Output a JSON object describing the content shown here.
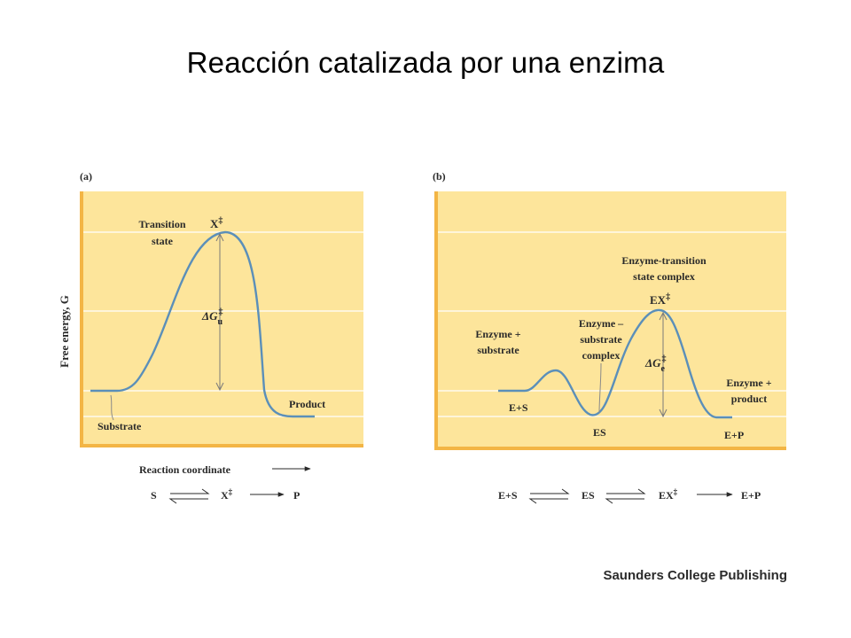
{
  "slide": {
    "title": "Reacción catalizada por una enzima",
    "credit": "Saunders College Publishing"
  },
  "colors": {
    "panel_fill": "#fde59b",
    "panel_border": "#f3b545",
    "curve": "#5b8fb9",
    "gridline": "#ffffff",
    "text": "#2a2a2a"
  },
  "panel_a": {
    "label": "(a)",
    "y_axis_label": "Free energy, G",
    "transition_state_line1": "Transition",
    "transition_state_line2": "state",
    "transition_symbol": "X",
    "delta_g": "ΔG",
    "delta_g_subscript": "u",
    "substrate_label": "Substrate",
    "product_label": "Product",
    "x_axis_label": "Reaction coordinate",
    "scheme": {
      "s": "S",
      "x": "X",
      "p": "P"
    }
  },
  "panel_b": {
    "label": "(b)",
    "complex_title_line1": "Enzyme-transition",
    "complex_title_line2": "state complex",
    "ex_symbol": "EX",
    "es_complex_line1": "Enzyme –",
    "es_complex_line2": "substrate",
    "es_complex_line3": "complex",
    "enzyme_substrate_line1": "Enzyme +",
    "enzyme_substrate_line2": "substrate",
    "delta_g": "ΔG",
    "delta_g_subscript": "e",
    "es_plus_label": "E+S",
    "es_label": "ES",
    "enzyme_product_line1": "Enzyme +",
    "enzyme_product_line2": "product",
    "ep_label": "E+P",
    "scheme": {
      "es_plus": "E+S",
      "es": "ES",
      "ex": "EX",
      "ep": "E+P"
    }
  },
  "double_dagger": "‡"
}
